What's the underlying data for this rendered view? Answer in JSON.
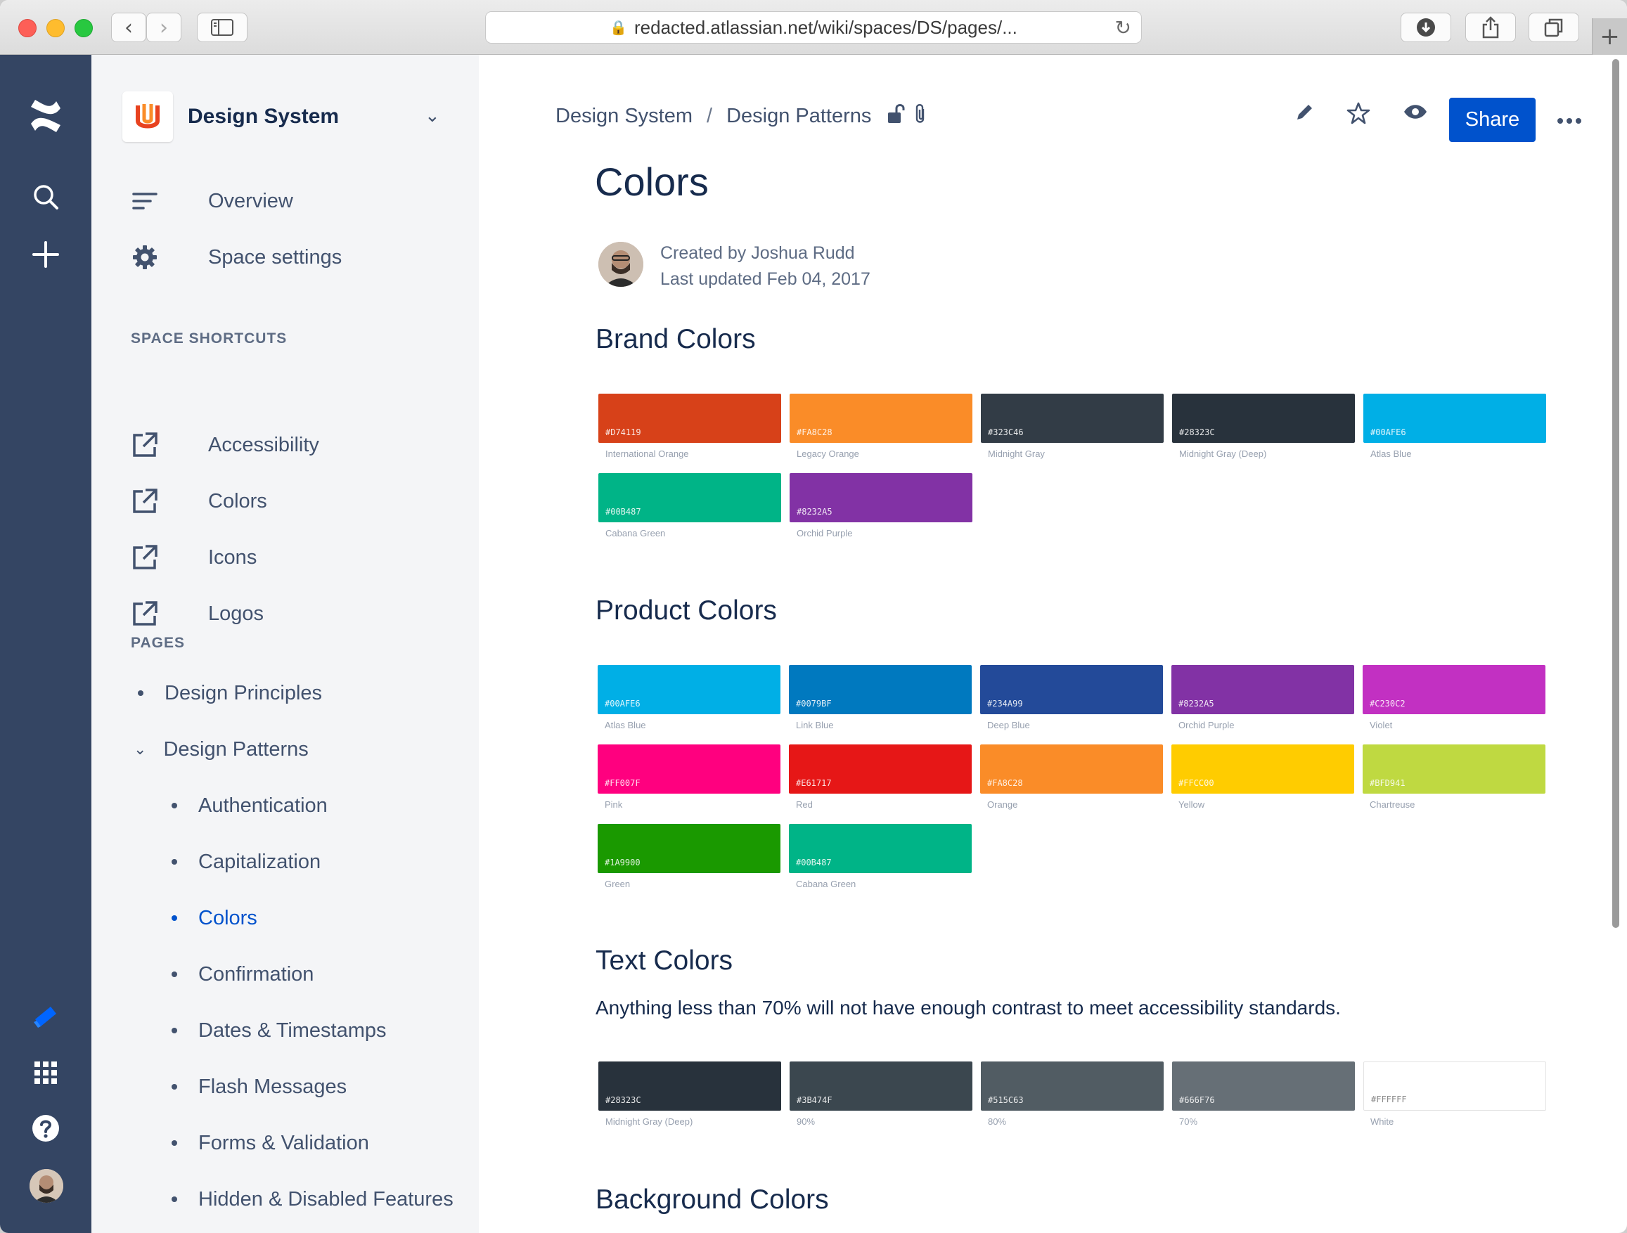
{
  "browser": {
    "url": "redacted.atlassian.net/wiki/spaces/DS/pages/..."
  },
  "space": {
    "name": "Design System"
  },
  "sidebar": {
    "nav": [
      {
        "label": "Overview",
        "icon": "overview-lines-icon"
      },
      {
        "label": "Space settings",
        "icon": "gear-icon"
      }
    ],
    "shortcuts_heading": "SPACE SHORTCUTS",
    "shortcuts": [
      {
        "label": "Accessibility"
      },
      {
        "label": "Colors"
      },
      {
        "label": "Icons"
      },
      {
        "label": "Logos"
      }
    ],
    "pages_heading": "PAGES",
    "pages": [
      {
        "label": "Design Principles"
      },
      {
        "label": "Design Patterns"
      }
    ],
    "children": [
      {
        "label": "Authentication"
      },
      {
        "label": "Capitalization"
      },
      {
        "label": "Colors",
        "active": true
      },
      {
        "label": "Confirmation"
      },
      {
        "label": "Dates & Timestamps"
      },
      {
        "label": "Flash Messages"
      },
      {
        "label": "Forms & Validation"
      },
      {
        "label": "Hidden & Disabled Features"
      }
    ]
  },
  "page": {
    "breadcrumb": [
      "Design System",
      "Design Patterns"
    ],
    "share_label": "Share",
    "title": "Colors",
    "created_by": "Created by Joshua Rudd",
    "last_updated": "Last updated Feb 04, 2017",
    "brand_heading": "Brand Colors",
    "product_heading": "Product Colors",
    "text_heading": "Text Colors",
    "text_desc": "Anything less than 70% will not have enough contrast to meet accessibility standards.",
    "background_heading": "Background Colors"
  },
  "colors": {
    "brand": [
      {
        "hex": "#D74119",
        "name": "International Orange"
      },
      {
        "hex": "#FA8C28",
        "name": "Legacy Orange"
      },
      {
        "hex": "#323C46",
        "name": "Midnight Gray"
      },
      {
        "hex": "#28323C",
        "name": "Midnight Gray (Deep)"
      },
      {
        "hex": "#00AFE6",
        "name": "Atlas Blue"
      },
      {
        "hex": "#00B487",
        "name": "Cabana Green"
      },
      {
        "hex": "#8232A5",
        "name": "Orchid Purple"
      }
    ],
    "product": [
      {
        "hex": "#00AFE6",
        "name": "Atlas Blue"
      },
      {
        "hex": "#0079BF",
        "name": "Link Blue"
      },
      {
        "hex": "#234A99",
        "name": "Deep Blue"
      },
      {
        "hex": "#8232A5",
        "name": "Orchid Purple"
      },
      {
        "hex": "#C230C2",
        "name": "Violet"
      },
      {
        "hex": "#FF007F",
        "name": "Pink"
      },
      {
        "hex": "#E61717",
        "name": "Red"
      },
      {
        "hex": "#FA8C28",
        "name": "Orange"
      },
      {
        "hex": "#FFCC00",
        "name": "Yellow"
      },
      {
        "hex": "#BFD941",
        "name": "Chartreuse"
      },
      {
        "hex": "#1A9900",
        "name": "Green"
      },
      {
        "hex": "#00B487",
        "name": "Cabana Green"
      }
    ],
    "text": [
      {
        "hex": "#28323C",
        "name": "Midnight Gray (Deep)"
      },
      {
        "hex": "#3B474F",
        "name": "90%"
      },
      {
        "hex": "#515C63",
        "name": "80%"
      },
      {
        "hex": "#666F76",
        "name": "70%"
      },
      {
        "hex": "#FFFFFF",
        "name": "White"
      }
    ]
  },
  "theme": {
    "nav_bg": "#344563",
    "sidebar_bg": "#F4F5F7",
    "primary": "#0052CC",
    "heading": "#172B4D",
    "text": "#42526E"
  }
}
